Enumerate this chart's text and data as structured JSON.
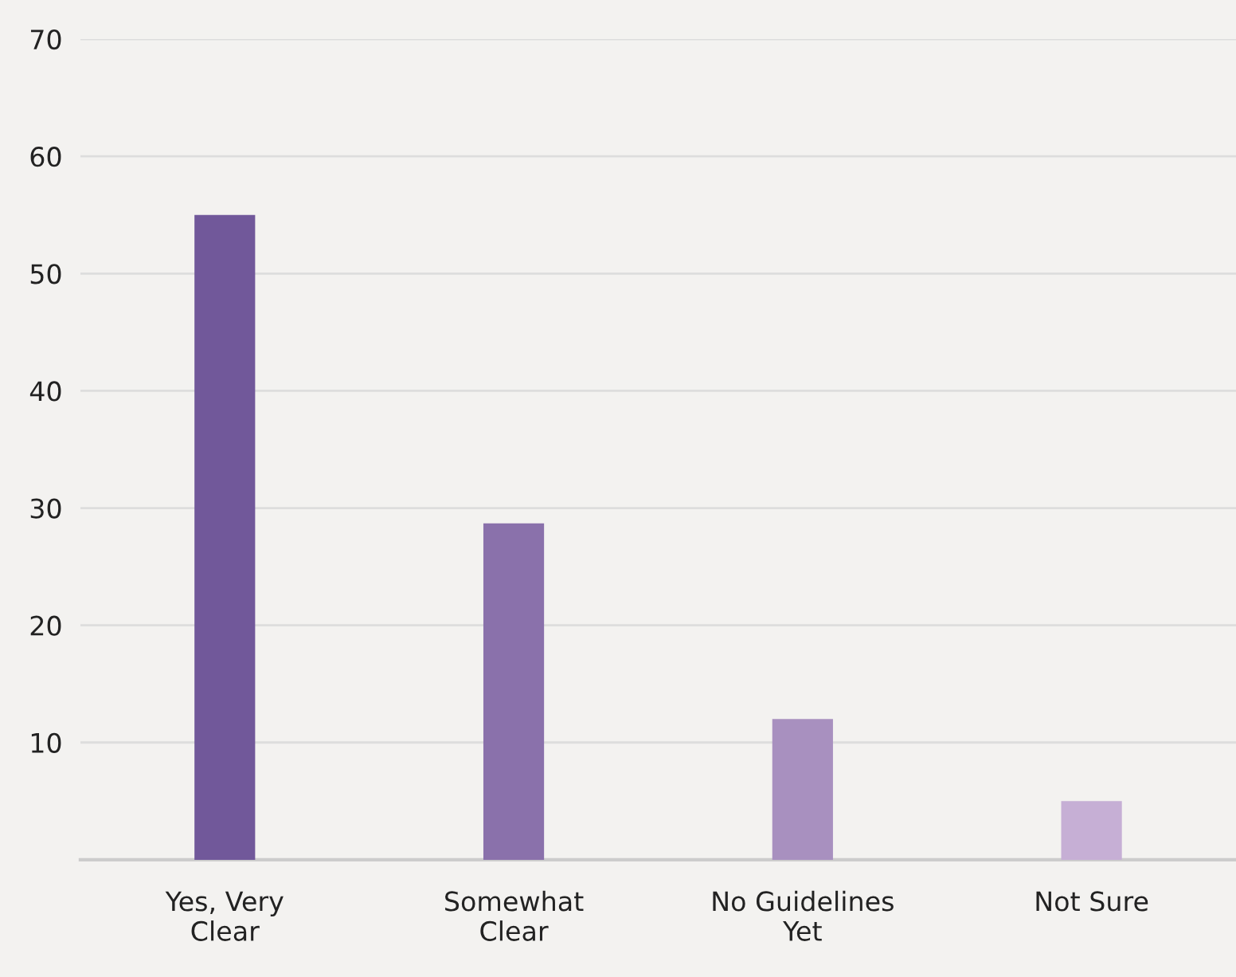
{
  "chart_data": {
    "type": "bar",
    "categories": [
      "Yes, Very\nClear",
      "Somewhat\nClear",
      "No Guidelines\nYet",
      "Not Sure"
    ],
    "values": [
      55,
      28.7,
      12,
      5
    ],
    "colors": [
      "#71589a",
      "#8a71ab",
      "#a890bf",
      "#c6afd5"
    ],
    "ylim": [
      0,
      70
    ],
    "yticks": [
      10,
      20,
      30,
      40,
      50,
      60,
      70
    ],
    "grid": "y"
  }
}
